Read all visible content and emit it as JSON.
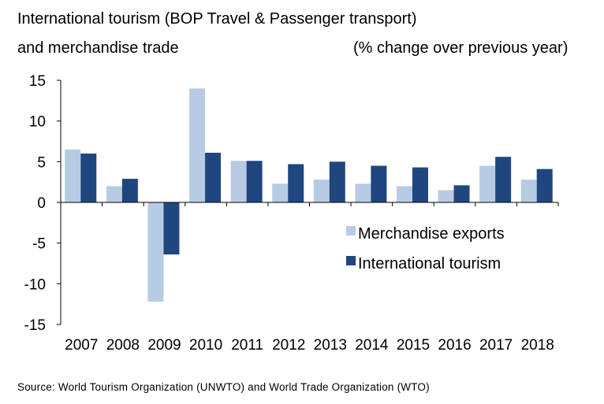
{
  "title": {
    "line1": "International tourism (BOP Travel & Passenger transport)",
    "line2": "and merchandise trade",
    "units": "(% change over previous year)"
  },
  "source": "Source: World Tourism Organization (UNWTO) and World Trade Organization (WTO)",
  "colors": {
    "merchandise": "#b7cce4",
    "tourism": "#1f467f"
  },
  "chart_data": {
    "type": "bar",
    "categories": [
      "2007",
      "2008",
      "2009",
      "2010",
      "2011",
      "2012",
      "2013",
      "2014",
      "2015",
      "2016",
      "2017",
      "2018"
    ],
    "series": [
      {
        "name": "Merchandise exports",
        "values": [
          6.5,
          2.0,
          -12.2,
          14.0,
          5.1,
          2.3,
          2.8,
          2.3,
          2.0,
          1.5,
          4.5,
          2.8
        ]
      },
      {
        "name": "International tourism",
        "values": [
          6.0,
          2.9,
          -6.4,
          6.1,
          5.1,
          4.7,
          5.0,
          4.5,
          4.3,
          2.1,
          5.6,
          4.1
        ]
      }
    ],
    "ylim": [
      -15,
      15
    ],
    "yticks": [
      15,
      10,
      5,
      0,
      -5,
      -10,
      -15
    ],
    "legend_position": "right-center",
    "xlabel": "",
    "ylabel": ""
  }
}
